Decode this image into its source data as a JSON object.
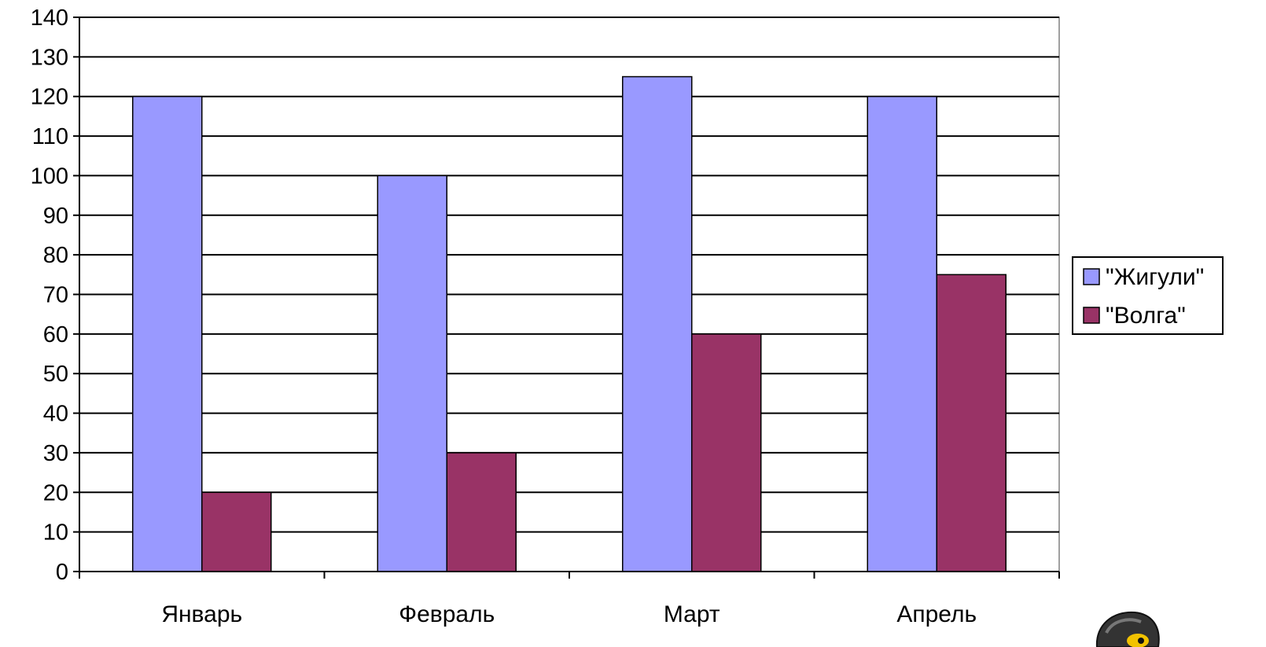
{
  "chart_data": {
    "type": "bar",
    "categories": [
      "Январь",
      "Февраль",
      "Март",
      "Апрель"
    ],
    "series": [
      {
        "name": "\"Жигули\"",
        "values": [
          120,
          100,
          125,
          120
        ],
        "color": "#9999ff"
      },
      {
        "name": "\"Волга\"",
        "values": [
          20,
          30,
          60,
          75
        ],
        "color": "#993366"
      }
    ],
    "yticks": [
      0,
      10,
      20,
      30,
      40,
      50,
      60,
      70,
      80,
      90,
      100,
      110,
      120,
      130,
      140
    ],
    "ylim": [
      0,
      140
    ],
    "grid": true,
    "legend_position": "right",
    "title": "",
    "xlabel": "",
    "ylabel": ""
  },
  "decoration": {
    "mascot_icon": "cartoon-character-peeking"
  }
}
